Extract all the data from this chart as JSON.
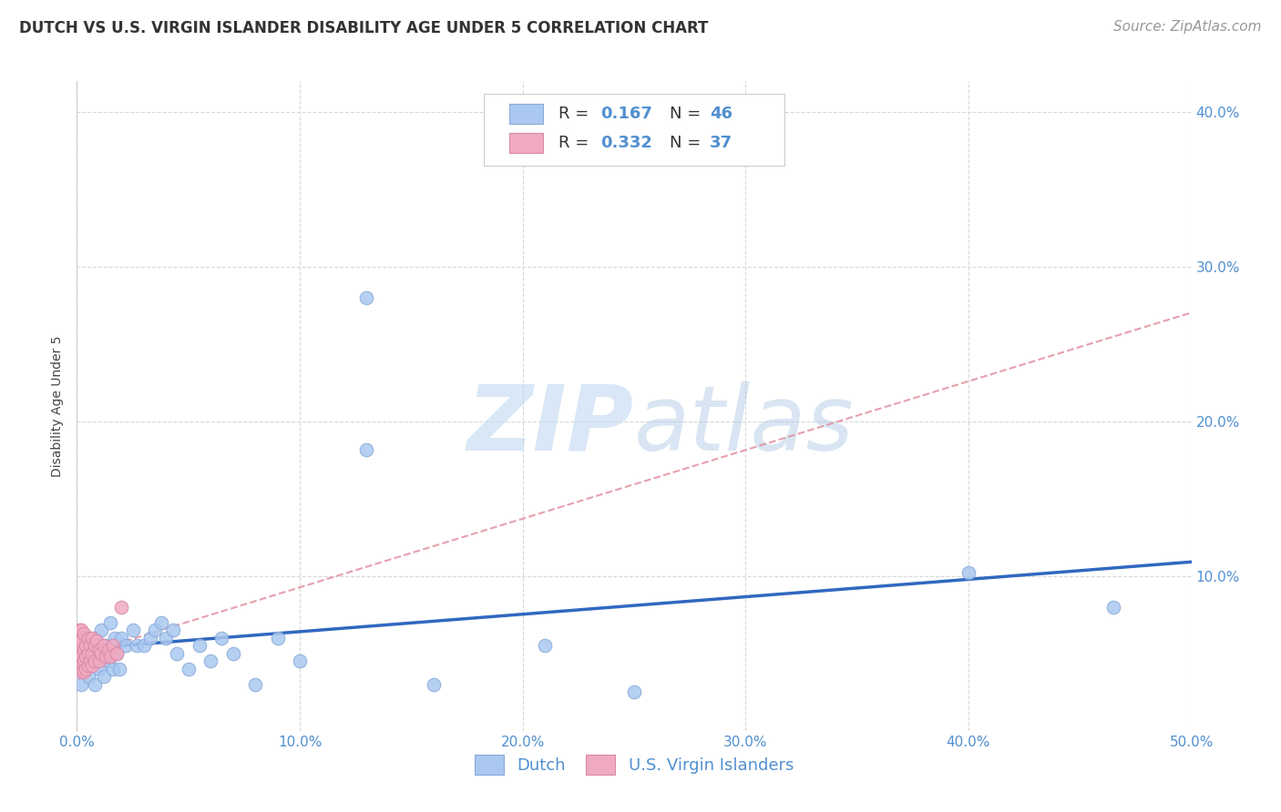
{
  "title": "DUTCH VS U.S. VIRGIN ISLANDER DISABILITY AGE UNDER 5 CORRELATION CHART",
  "source": "Source: ZipAtlas.com",
  "ylabel": "Disability Age Under 5",
  "xlim": [
    0.0,
    0.5
  ],
  "ylim": [
    0.0,
    0.42
  ],
  "xticks": [
    0.0,
    0.1,
    0.2,
    0.3,
    0.4,
    0.5
  ],
  "yticks": [
    0.1,
    0.2,
    0.3,
    0.4
  ],
  "xticklabels": [
    "0.0%",
    "10.0%",
    "20.0%",
    "30.0%",
    "40.0%",
    "50.0%"
  ],
  "yticklabels": [
    "10.0%",
    "20.0%",
    "30.0%",
    "40.0%"
  ],
  "background_color": "#ffffff",
  "grid_color": "#d8d8d8",
  "watermark_zip": "ZIP",
  "watermark_atlas": "atlas",
  "dutch_color": "#aac8f0",
  "dutch_edge_color": "#88aad8",
  "usvi_color": "#f0aac0",
  "usvi_edge_color": "#d888a8",
  "dutch_line_color": "#3068c0",
  "usvi_line_color": "#e08898",
  "R_dutch": 0.167,
  "N_dutch": 46,
  "R_usvi": 0.332,
  "N_usvi": 37,
  "dutch_x": [
    0.002,
    0.003,
    0.004,
    0.004,
    0.005,
    0.006,
    0.007,
    0.008,
    0.008,
    0.009,
    0.01,
    0.011,
    0.012,
    0.013,
    0.014,
    0.015,
    0.016,
    0.017,
    0.018,
    0.019,
    0.02,
    0.022,
    0.025,
    0.027,
    0.03,
    0.033,
    0.035,
    0.038,
    0.04,
    0.043,
    0.045,
    0.05,
    0.055,
    0.06,
    0.065,
    0.07,
    0.08,
    0.09,
    0.1,
    0.13,
    0.13,
    0.16,
    0.21,
    0.25,
    0.4,
    0.465
  ],
  "dutch_y": [
    0.03,
    0.05,
    0.04,
    0.06,
    0.035,
    0.055,
    0.045,
    0.03,
    0.06,
    0.05,
    0.04,
    0.065,
    0.035,
    0.055,
    0.045,
    0.07,
    0.04,
    0.06,
    0.05,
    0.04,
    0.06,
    0.055,
    0.065,
    0.055,
    0.055,
    0.06,
    0.065,
    0.07,
    0.06,
    0.065,
    0.05,
    0.04,
    0.055,
    0.045,
    0.06,
    0.05,
    0.03,
    0.06,
    0.045,
    0.28,
    0.182,
    0.03,
    0.055,
    0.025,
    0.102,
    0.08
  ],
  "usvi_x": [
    0.001,
    0.001,
    0.001,
    0.001,
    0.002,
    0.002,
    0.002,
    0.002,
    0.002,
    0.003,
    0.003,
    0.003,
    0.003,
    0.004,
    0.004,
    0.004,
    0.005,
    0.005,
    0.005,
    0.006,
    0.006,
    0.007,
    0.007,
    0.007,
    0.008,
    0.008,
    0.009,
    0.01,
    0.01,
    0.011,
    0.012,
    0.013,
    0.014,
    0.015,
    0.016,
    0.018,
    0.02
  ],
  "usvi_y": [
    0.05,
    0.055,
    0.065,
    0.04,
    0.048,
    0.058,
    0.042,
    0.065,
    0.038,
    0.052,
    0.063,
    0.045,
    0.038,
    0.055,
    0.048,
    0.04,
    0.06,
    0.05,
    0.042,
    0.055,
    0.045,
    0.06,
    0.05,
    0.042,
    0.055,
    0.045,
    0.058,
    0.052,
    0.045,
    0.05,
    0.055,
    0.048,
    0.052,
    0.048,
    0.055,
    0.05,
    0.08
  ],
  "marker_size": 110,
  "title_fontsize": 12,
  "axis_label_fontsize": 10,
  "tick_fontsize": 11,
  "legend_fontsize": 13,
  "source_fontsize": 11,
  "tick_color": "#5090d0",
  "axis_color": "#5090d0"
}
